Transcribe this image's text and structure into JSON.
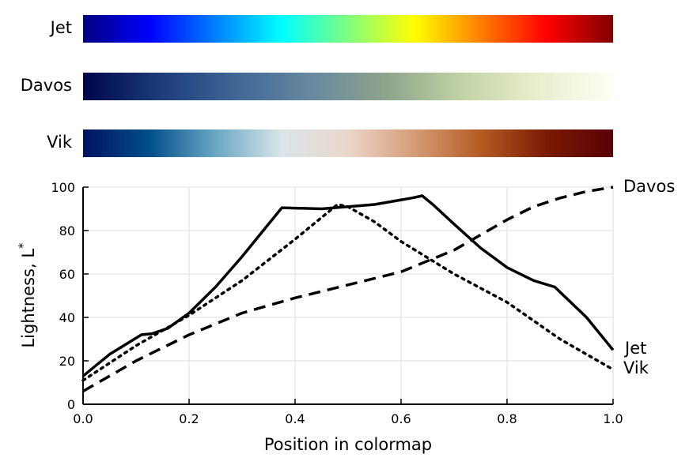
{
  "colormaps": [
    {
      "name": "Jet",
      "stops": [
        "#00007f",
        "#0000ff",
        "#007fff",
        "#00ffff",
        "#7fff7f",
        "#ffff00",
        "#ff7f00",
        "#ff0000",
        "#7f0000"
      ]
    },
    {
      "name": "Davos",
      "stops": [
        "#00054a",
        "#1c3b7a",
        "#3f6696",
        "#67889f",
        "#8da48b",
        "#c1d2a5",
        "#e9eecd",
        "#fefef5"
      ]
    },
    {
      "name": "Vik",
      "stops": [
        "#001261",
        "#034f8b",
        "#6aa7c4",
        "#dae5e9",
        "#ebd6cb",
        "#d49c78",
        "#b55c24",
        "#7a1a02",
        "#590008"
      ]
    }
  ],
  "chart_data": {
    "type": "line",
    "xlabel": "Position in colormap",
    "ylabel": "Lightness, L",
    "ylabel_superscript": "*",
    "xlim": [
      0.0,
      1.0
    ],
    "ylim": [
      0,
      100
    ],
    "xticks": [
      "0.0",
      "0.2",
      "0.4",
      "0.6",
      "0.8",
      "1.0"
    ],
    "yticks": [
      "0",
      "20",
      "40",
      "60",
      "80",
      "100"
    ],
    "grid": true,
    "series": [
      {
        "name": "Jet",
        "style": "solid",
        "x": [
          0.0,
          0.05,
          0.11,
          0.13,
          0.16,
          0.2,
          0.25,
          0.3,
          0.34,
          0.375,
          0.45,
          0.55,
          0.62,
          0.64,
          0.66,
          0.7,
          0.75,
          0.8,
          0.85,
          0.89,
          0.95,
          1.0
        ],
        "y": [
          13,
          23,
          32,
          32.5,
          35,
          42,
          54,
          68,
          80,
          90.5,
          90,
          92,
          95,
          96,
          92,
          83,
          72,
          63,
          57,
          54,
          40,
          25
        ]
      },
      {
        "name": "Davos",
        "style": "dashed",
        "x": [
          0.0,
          0.1,
          0.2,
          0.3,
          0.4,
          0.5,
          0.6,
          0.65,
          0.7,
          0.75,
          0.8,
          0.85,
          0.9,
          0.95,
          1.0
        ],
        "y": [
          6,
          20,
          32,
          42,
          49,
          55,
          61,
          66,
          71,
          78,
          85,
          91,
          95,
          98,
          100
        ]
      },
      {
        "name": "Vik",
        "style": "dotted",
        "x": [
          0.0,
          0.1,
          0.2,
          0.3,
          0.4,
          0.48,
          0.5,
          0.55,
          0.6,
          0.7,
          0.8,
          0.9,
          1.0
        ],
        "y": [
          11,
          27,
          41,
          57,
          76,
          92,
          91,
          84,
          75,
          60,
          47,
          30,
          16
        ]
      }
    ]
  }
}
